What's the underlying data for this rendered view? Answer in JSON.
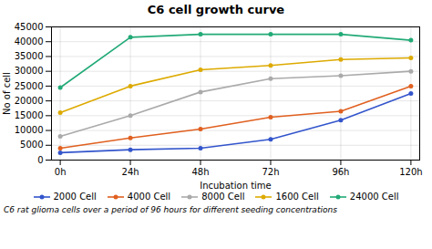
{
  "chart_data": {
    "type": "line",
    "title": "C6 cell growth curve",
    "xlabel": "Incubation time",
    "ylabel": "No of cell",
    "caption": "C6 rat glioma cells over a period of 96 hours for different seeding concentrations",
    "x": [
      0,
      24,
      48,
      72,
      96,
      120
    ],
    "xlim": [
      -3,
      123
    ],
    "xticks": [
      {
        "value": 0,
        "label": "0h"
      },
      {
        "value": 24,
        "label": "24h"
      },
      {
        "value": 48,
        "label": "48h"
      },
      {
        "value": 72,
        "label": "72h"
      },
      {
        "value": 96,
        "label": "96h"
      },
      {
        "value": 120,
        "label": "120h"
      }
    ],
    "ylim": [
      0,
      45000
    ],
    "yticks": [
      0,
      5000,
      10000,
      15000,
      20000,
      25000,
      30000,
      35000,
      40000,
      45000
    ],
    "grid": true,
    "legend": "bottom",
    "marker": "circle",
    "series": [
      {
        "name": "2000 Cell",
        "color": "#3355cc",
        "values": [
          2500,
          3500,
          4000,
          7000,
          13500,
          22500
        ]
      },
      {
        "name": "4000 Cell",
        "color": "#e06020",
        "values": [
          4000,
          7500,
          10500,
          14500,
          16500,
          25000
        ]
      },
      {
        "name": "8000 Cell",
        "color": "#aaaaaa",
        "values": [
          8000,
          15000,
          23000,
          27500,
          28500,
          30000
        ]
      },
      {
        "name": "1600 Cell",
        "color": "#ddaa00",
        "values": [
          16000,
          25000,
          30500,
          32000,
          34000,
          34500
        ]
      },
      {
        "name": "24000 Cell",
        "color": "#22aa77",
        "values": [
          24500,
          41500,
          42500,
          42500,
          42500,
          40500
        ]
      }
    ]
  }
}
